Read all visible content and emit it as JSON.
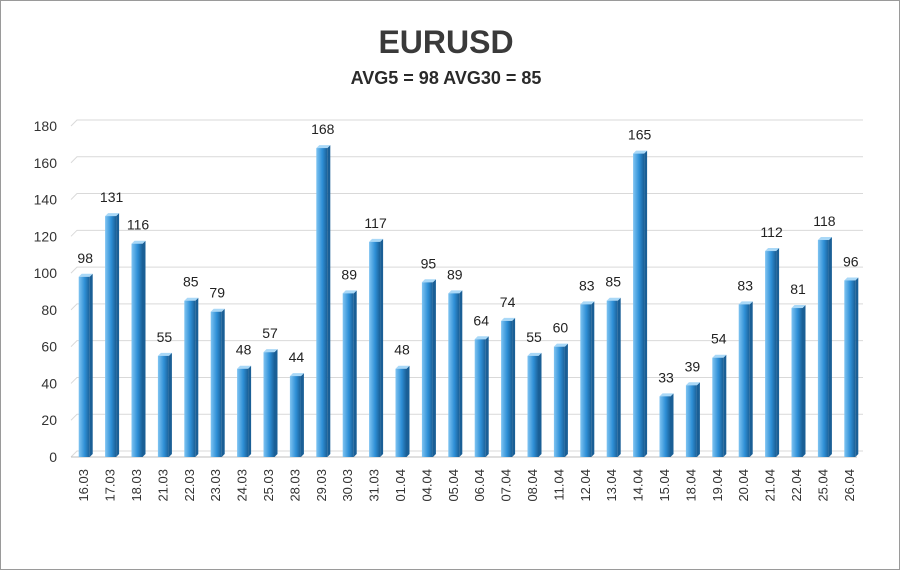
{
  "chart_data": {
    "type": "bar",
    "title": "EURUSD",
    "subtitle": "AVG5 = 98 AVG30 = 85",
    "categories": [
      "16.03",
      "17.03",
      "18.03",
      "21.03",
      "22.03",
      "23.03",
      "24.03",
      "25.03",
      "28.03",
      "29.03",
      "30.03",
      "31.03",
      "01.04",
      "04.04",
      "05.04",
      "06.04",
      "07.04",
      "08.04",
      "11.04",
      "12.04",
      "13.04",
      "14.04",
      "15.04",
      "18.04",
      "19.04",
      "20.04",
      "21.04",
      "22.04",
      "25.04",
      "26.04"
    ],
    "values": [
      98,
      131,
      116,
      55,
      85,
      79,
      48,
      57,
      44,
      168,
      89,
      117,
      48,
      95,
      89,
      64,
      74,
      55,
      60,
      83,
      85,
      165,
      33,
      39,
      54,
      83,
      112,
      81,
      118,
      96
    ],
    "ylim": [
      0,
      180
    ],
    "yticks": [
      0,
      20,
      40,
      60,
      80,
      100,
      120,
      140,
      160,
      180
    ],
    "grid": true,
    "legend": "none",
    "colors": {
      "bar_front": "#2e8fd6",
      "bar_light": "#7fc4f2",
      "bar_side": "#1a5f96",
      "bar_top": "#a9d8f7",
      "grid": "#d9d9d9"
    }
  }
}
